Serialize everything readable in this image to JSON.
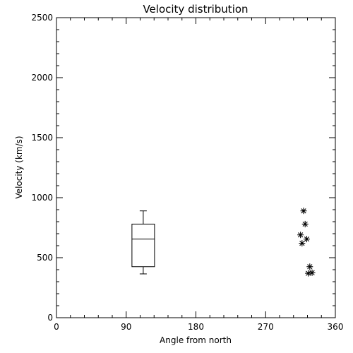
{
  "chart_data": {
    "type": "boxplot+scatter",
    "title": "Velocity distribution",
    "xlabel": "Angle from north",
    "ylabel": "Velocity (km/s)",
    "xlim": [
      0,
      360
    ],
    "ylim": [
      0,
      2500
    ],
    "xticks": [
      0,
      90,
      180,
      270,
      360
    ],
    "yticks": [
      0,
      500,
      1000,
      1500,
      2000,
      2500
    ],
    "grid": false,
    "box": {
      "x": 112,
      "whisker_low": 365,
      "q1": 425,
      "median": 655,
      "q3": 780,
      "whisker_high": 890
    },
    "points": [
      {
        "x": 319,
        "y": 890
      },
      {
        "x": 321,
        "y": 780
      },
      {
        "x": 315,
        "y": 690
      },
      {
        "x": 323,
        "y": 655
      },
      {
        "x": 317,
        "y": 620
      },
      {
        "x": 327,
        "y": 425
      },
      {
        "x": 325,
        "y": 370
      },
      {
        "x": 330,
        "y": 375
      }
    ],
    "marker": "asterisk",
    "color": "#000000"
  }
}
